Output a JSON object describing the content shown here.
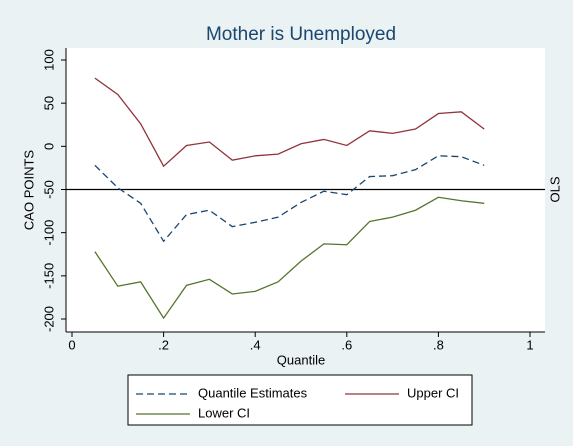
{
  "chart_data": {
    "type": "line",
    "title": "Mother is Unemployed",
    "x_label": "Quantile",
    "y_label": "CAO POINTS",
    "x": [
      0.05,
      0.1,
      0.15,
      0.2,
      0.25,
      0.3,
      0.35,
      0.4,
      0.45,
      0.5,
      0.55,
      0.6,
      0.65,
      0.7,
      0.75,
      0.8,
      0.85,
      0.9
    ],
    "series": [
      {
        "name": "Quantile Estimates",
        "color": "#1a476f",
        "dash": true,
        "values": [
          -22,
          -48,
          -66,
          -110,
          -79,
          -74,
          -93,
          -88,
          -82,
          -65,
          -52,
          -56,
          -35,
          -34,
          -27,
          -11,
          -12,
          -22
        ]
      },
      {
        "name": "Upper CI",
        "color": "#90353b",
        "dash": false,
        "values": [
          79,
          60,
          26,
          -23,
          1,
          5,
          -16,
          -11,
          -9,
          3,
          8,
          1,
          18,
          15,
          20,
          38,
          40,
          20
        ]
      },
      {
        "name": "Lower CI",
        "color": "#55752f",
        "dash": false,
        "values": [
          -122,
          -162,
          -157,
          -199,
          -161,
          -154,
          -171,
          -168,
          -157,
          -133,
          -113,
          -114,
          -87,
          -82,
          -74,
          -59,
          -63,
          -66
        ]
      }
    ],
    "reference_line": {
      "label": "OLS",
      "value": -50
    },
    "xlim": [
      0,
      1
    ],
    "ylim": [
      -200,
      100
    ],
    "xticks": [
      0,
      {
        "value": 0.2,
        "label": ".2"
      },
      {
        "value": 0.4,
        "label": ".4"
      },
      {
        "value": 0.6,
        "label": ".6"
      },
      {
        "value": 0.8,
        "label": ".8"
      },
      1
    ],
    "yticks": [
      -200,
      -150,
      -100,
      -50,
      0,
      50,
      100
    ]
  }
}
